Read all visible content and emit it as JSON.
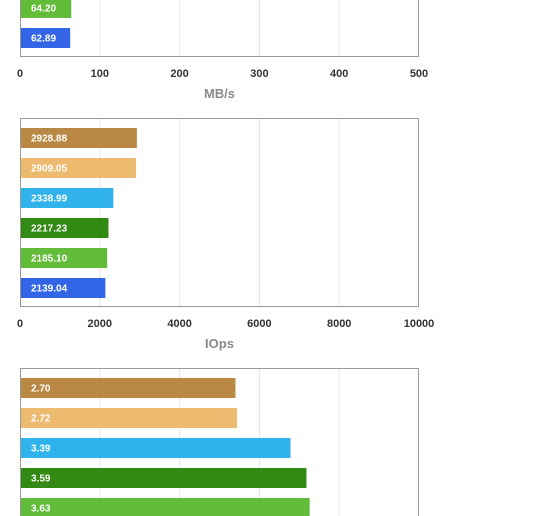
{
  "chart_data": [
    {
      "type": "bar",
      "orientation": "horizontal",
      "xlabel": "MB/s",
      "xlim": [
        0,
        500
      ],
      "ticks": [
        "0",
        "100",
        "200",
        "300",
        "400",
        "500"
      ],
      "grid": true,
      "values": [
        64.2,
        62.89
      ],
      "labels": [
        "64.20",
        "62.89"
      ],
      "colors": [
        "#63bb3a",
        "#3366e6"
      ]
    },
    {
      "type": "bar",
      "orientation": "horizontal",
      "xlabel": "IOps",
      "xlim": [
        0,
        10000
      ],
      "ticks": [
        "0",
        "2000",
        "4000",
        "6000",
        "8000",
        "10000"
      ],
      "grid": true,
      "values": [
        2928.88,
        2909.05,
        2338.99,
        2217.23,
        2185.1,
        2139.04
      ],
      "labels": [
        "2928.88",
        "2909.05",
        "2338.99",
        "2217.23",
        "2185.10",
        "2139.04"
      ],
      "colors": [
        "#b98844",
        "#edbb6f",
        "#2fb3ea",
        "#328a14",
        "#63bb3a",
        "#3366e6"
      ]
    },
    {
      "type": "bar",
      "orientation": "horizontal",
      "xlabel": "",
      "xlim": [
        0,
        5
      ],
      "ticks": [],
      "grid": true,
      "values": [
        2.7,
        2.72,
        3.39,
        3.59,
        3.63
      ],
      "labels": [
        "2.70",
        "2.72",
        "3.39",
        "3.59",
        "3.63"
      ],
      "colors": [
        "#b98844",
        "#edbb6f",
        "#2fb3ea",
        "#328a14",
        "#63bb3a"
      ]
    }
  ]
}
